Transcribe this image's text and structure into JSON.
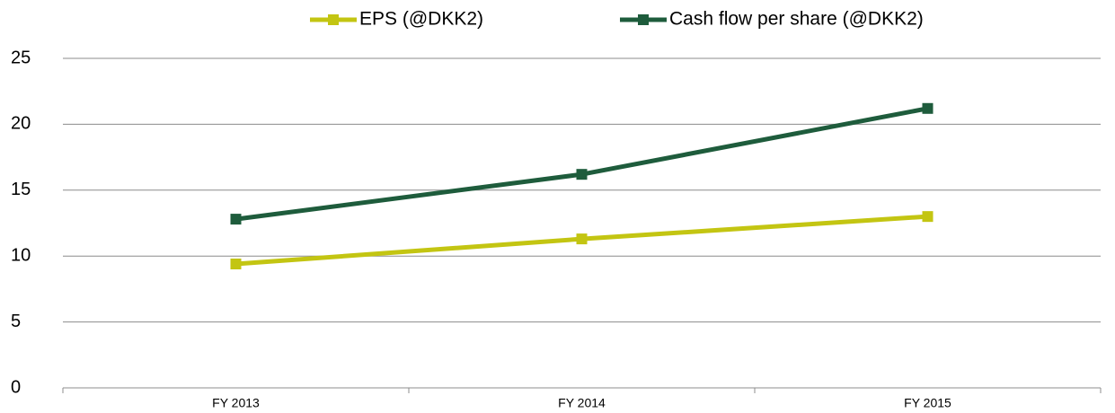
{
  "chart_data": {
    "type": "line",
    "categories": [
      "FY 2013",
      "FY 2014",
      "FY 2015"
    ],
    "series": [
      {
        "name": "EPS (@DKK2)",
        "color": "#c3c512",
        "values": [
          9.4,
          11.3,
          13.0
        ]
      },
      {
        "name": "Cash flow per share (@DKK2)",
        "color": "#1e5c3c",
        "values": [
          12.8,
          16.2,
          21.2
        ]
      }
    ],
    "ylim": [
      0,
      25
    ],
    "yticks": [
      0,
      5,
      10,
      15,
      20,
      25
    ],
    "grid": true,
    "legend": "top"
  }
}
